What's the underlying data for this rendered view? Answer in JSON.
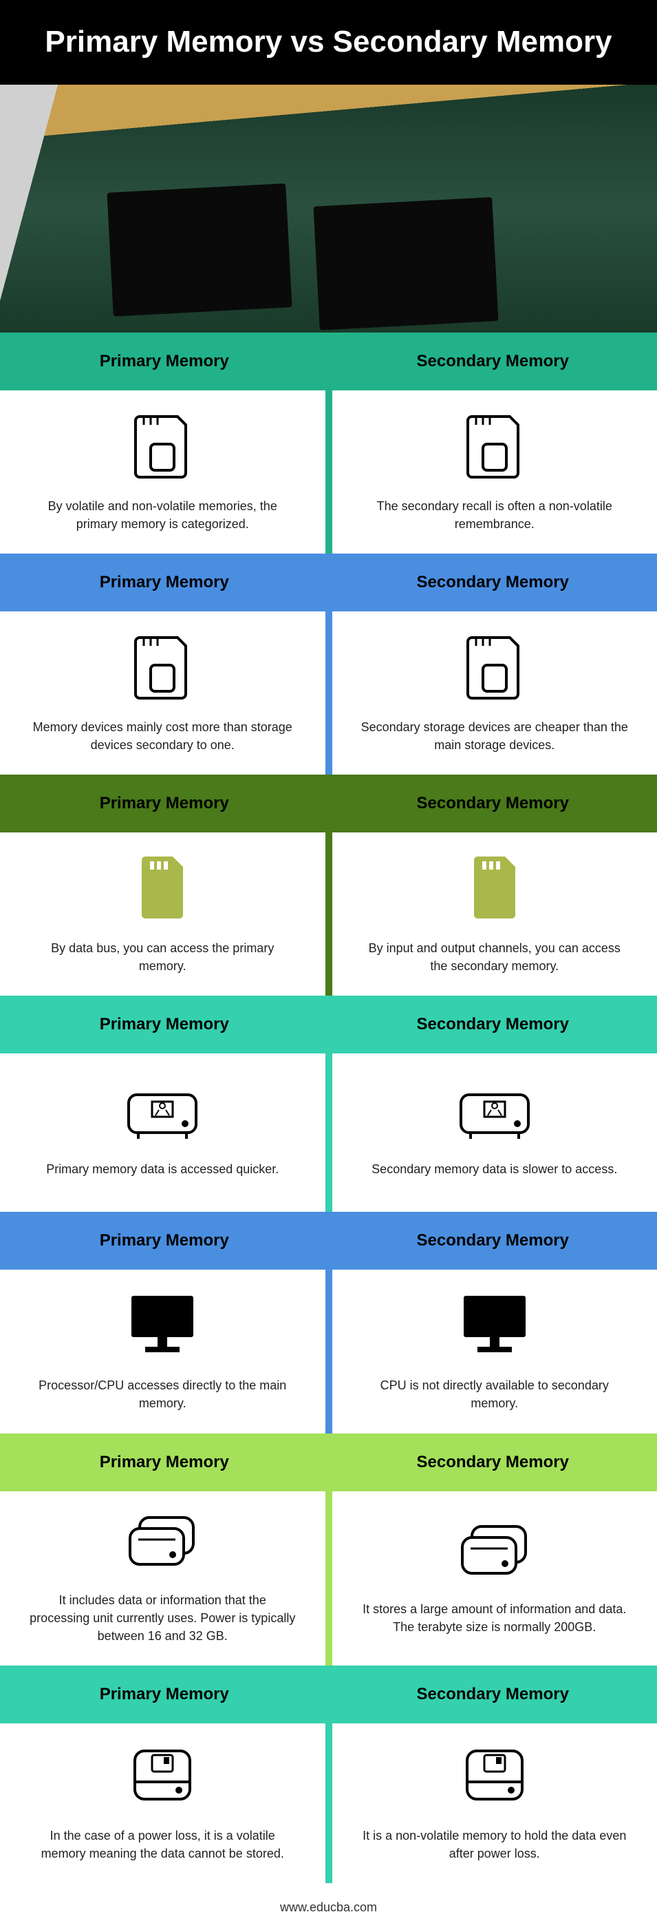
{
  "title": "Primary Memory vs Secondary Memory",
  "footer": "www.educba.com",
  "col_left": "Primary Memory",
  "col_right": "Secondary Memory",
  "header_colors": [
    "#22b289",
    "#4a8ee0",
    "#4a7a1a",
    "#35d0ad",
    "#4a8ee0",
    "#a4e05a",
    "#35d0ad"
  ],
  "sections": [
    {
      "icon": "sd",
      "icon_style": "outline",
      "left": "By volatile and non-volatile memories, the primary memory is categorized.",
      "right": "The secondary recall is often a non-volatile remembrance."
    },
    {
      "icon": "sd",
      "icon_style": "outline",
      "left": "Memory devices mainly cost more than storage devices secondary to one.",
      "right": "Secondary storage devices are cheaper than the main storage devices."
    },
    {
      "icon": "sd",
      "icon_style": "solid",
      "left": "By data bus, you can access the primary memory.",
      "right": "By input and output channels, you can access the secondary memory."
    },
    {
      "icon": "hdd",
      "icon_style": "outline",
      "left": "Primary memory data is accessed quicker.",
      "right": "Secondary memory data is slower to access."
    },
    {
      "icon": "monitor",
      "icon_style": "solid-black",
      "left": "Processor/CPU accesses directly to the main memory.",
      "right": "CPU is not directly available to secondary memory."
    },
    {
      "icon": "drives",
      "icon_style": "outline",
      "left": "It includes data or information that the processing unit currently uses. Power is typically between 16 and 32 GB.",
      "right": "It stores a large amount of information and data. The terabyte size is normally 200GB."
    },
    {
      "icon": "drive-save",
      "icon_style": "outline",
      "left": "In the case of a power loss, it is a volatile memory meaning the data cannot be stored.",
      "right": "It is a non-volatile memory to hold the data even after power loss."
    }
  ],
  "icon_solid_color": "#a9b84a"
}
